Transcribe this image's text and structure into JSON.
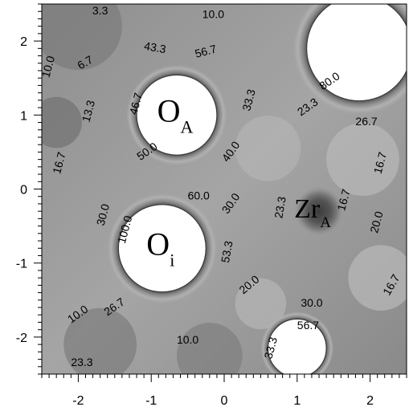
{
  "chart_data": {
    "type": "heatmap",
    "title": "",
    "xlabel": "",
    "ylabel": "",
    "xlim": [
      -2.5,
      2.5
    ],
    "ylim": [
      -2.5,
      2.5
    ],
    "x_ticks": [
      "-2",
      "-1",
      "0",
      "1",
      "2"
    ],
    "y_ticks": [
      "2",
      "1",
      "0",
      "-1",
      "-2"
    ],
    "grid": false,
    "colormap": "grayscale",
    "atoms": [
      {
        "name": "O_A",
        "label_main": "O",
        "label_sub": "A",
        "x": -0.65,
        "y": 1.0,
        "r": 0.55,
        "label_color": "#000000"
      },
      {
        "name": "O_i",
        "label_main": "O",
        "label_sub": "i",
        "x": -0.85,
        "y": -0.8,
        "r": 0.6,
        "label_color": "#000000"
      },
      {
        "name": "Zr_A",
        "label_main": "Zr",
        "label_sub": "A",
        "x": 1.3,
        "y": -0.3,
        "r": 0.22,
        "label_color": "#ffffff"
      },
      {
        "name": "corner",
        "label_main": "",
        "label_sub": "",
        "x": 1.85,
        "y": 1.9,
        "r": 0.72,
        "label_color": "#000000"
      },
      {
        "name": "bottom",
        "label_main": "",
        "label_sub": "",
        "x": 1.0,
        "y": -2.15,
        "r": 0.4,
        "label_color": "#000000"
      }
    ],
    "contour_labels": [
      {
        "text": "3.3",
        "x": -1.7,
        "y": 2.4,
        "angle": 0
      },
      {
        "text": "10.0",
        "x": -0.15,
        "y": 2.35,
        "angle": 0
      },
      {
        "text": "10.0",
        "x": -2.4,
        "y": 1.65,
        "angle": -75
      },
      {
        "text": "6.7",
        "x": -1.9,
        "y": 1.7,
        "angle": -30
      },
      {
        "text": "43.3",
        "x": -0.95,
        "y": 1.9,
        "angle": 10
      },
      {
        "text": "56.7",
        "x": -0.25,
        "y": 1.85,
        "angle": -15
      },
      {
        "text": "80.0",
        "x": 1.45,
        "y": 1.45,
        "angle": -35
      },
      {
        "text": "33.3",
        "x": 0.35,
        "y": 1.2,
        "angle": -75
      },
      {
        "text": "46.7",
        "x": -1.2,
        "y": 1.15,
        "angle": -75
      },
      {
        "text": "23.3",
        "x": 1.15,
        "y": 1.1,
        "angle": -35
      },
      {
        "text": "13.3",
        "x": -1.85,
        "y": 1.05,
        "angle": -75
      },
      {
        "text": "26.7",
        "x": 1.95,
        "y": 0.9,
        "angle": 0
      },
      {
        "text": "50.0",
        "x": -1.05,
        "y": 0.5,
        "angle": -35
      },
      {
        "text": "40.0",
        "x": 0.1,
        "y": 0.5,
        "angle": -55
      },
      {
        "text": "16.7",
        "x": -2.25,
        "y": 0.35,
        "angle": -75
      },
      {
        "text": "16.7",
        "x": 2.15,
        "y": 0.35,
        "angle": -75
      },
      {
        "text": "60.0",
        "x": -0.35,
        "y": -0.1,
        "angle": 0
      },
      {
        "text": "30.0",
        "x": 0.1,
        "y": -0.2,
        "angle": -55
      },
      {
        "text": "23.3",
        "x": 0.78,
        "y": -0.25,
        "angle": -80
      },
      {
        "text": "16.7",
        "x": 1.65,
        "y": -0.15,
        "angle": -75
      },
      {
        "text": "30.0",
        "x": -1.65,
        "y": -0.35,
        "angle": -75
      },
      {
        "text": "100.0",
        "x": -1.35,
        "y": -0.55,
        "angle": -75
      },
      {
        "text": "20.0",
        "x": 2.1,
        "y": -0.45,
        "angle": -75
      },
      {
        "text": "53.3",
        "x": 0.05,
        "y": -0.85,
        "angle": -80
      },
      {
        "text": "20.0",
        "x": 0.35,
        "y": -1.3,
        "angle": -40
      },
      {
        "text": "16.7",
        "x": 2.3,
        "y": -1.3,
        "angle": -60
      },
      {
        "text": "30.0",
        "x": 1.2,
        "y": -1.55,
        "angle": 0
      },
      {
        "text": "26.7",
        "x": -1.5,
        "y": -1.6,
        "angle": -35
      },
      {
        "text": "10.0",
        "x": -2.0,
        "y": -1.7,
        "angle": -35
      },
      {
        "text": "56.7",
        "x": 1.15,
        "y": -1.85,
        "angle": 0
      },
      {
        "text": "10.0",
        "x": -0.5,
        "y": -2.05,
        "angle": 0
      },
      {
        "text": "33.3",
        "x": 0.65,
        "y": -2.15,
        "angle": -75
      },
      {
        "text": "23.3",
        "x": -1.95,
        "y": -2.35,
        "angle": 0
      }
    ]
  }
}
